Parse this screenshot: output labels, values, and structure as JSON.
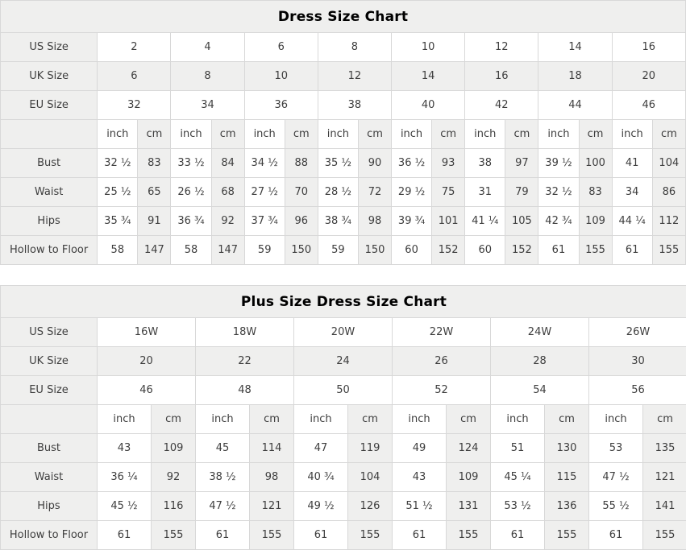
{
  "colors": {
    "shaded_bg": "#efefee",
    "border": "#d8d8d8",
    "body_text": "#3e3e3e",
    "title_text": "#000000",
    "page_bg": "#ffffff"
  },
  "tables": [
    {
      "title": "Dress Size Chart",
      "size_rows": [
        {
          "label": "US Size",
          "shaded": false,
          "values": [
            "2",
            "4",
            "6",
            "8",
            "10",
            "12",
            "14",
            "16"
          ]
        },
        {
          "label": "UK Size",
          "shaded": true,
          "values": [
            "6",
            "8",
            "10",
            "12",
            "14",
            "16",
            "18",
            "20"
          ]
        },
        {
          "label": "EU Size",
          "shaded": false,
          "values": [
            "32",
            "34",
            "36",
            "38",
            "40",
            "42",
            "44",
            "46"
          ]
        }
      ],
      "unit_row": {
        "label": "",
        "units": [
          "inch",
          "cm"
        ]
      },
      "measurement_rows": [
        {
          "label": "Bust",
          "values": [
            [
              "32 ½",
              "83"
            ],
            [
              "33 ½",
              "84"
            ],
            [
              "34 ½",
              "88"
            ],
            [
              "35 ½",
              "90"
            ],
            [
              "36 ½",
              "93"
            ],
            [
              "38",
              "97"
            ],
            [
              "39 ½",
              "100"
            ],
            [
              "41",
              "104"
            ]
          ]
        },
        {
          "label": "Waist",
          "values": [
            [
              "25 ½",
              "65"
            ],
            [
              "26 ½",
              "68"
            ],
            [
              "27 ½",
              "70"
            ],
            [
              "28 ½",
              "72"
            ],
            [
              "29 ½",
              "75"
            ],
            [
              "31",
              "79"
            ],
            [
              "32 ½",
              "83"
            ],
            [
              "34",
              "86"
            ]
          ]
        },
        {
          "label": "Hips",
          "values": [
            [
              "35 ¾",
              "91"
            ],
            [
              "36 ¾",
              "92"
            ],
            [
              "37 ¾",
              "96"
            ],
            [
              "38 ¾",
              "98"
            ],
            [
              "39 ¾",
              "101"
            ],
            [
              "41 ¼",
              "105"
            ],
            [
              "42 ¾",
              "109"
            ],
            [
              "44 ¼",
              "112"
            ]
          ]
        },
        {
          "label": "Hollow to Floor",
          "values": [
            [
              "58",
              "147"
            ],
            [
              "58",
              "147"
            ],
            [
              "59",
              "150"
            ],
            [
              "59",
              "150"
            ],
            [
              "60",
              "152"
            ],
            [
              "60",
              "152"
            ],
            [
              "61",
              "155"
            ],
            [
              "61",
              "155"
            ]
          ]
        }
      ]
    },
    {
      "title": "Plus Size Dress Size Chart",
      "size_rows": [
        {
          "label": "US Size",
          "shaded": false,
          "values": [
            "16W",
            "18W",
            "20W",
            "22W",
            "24W",
            "26W"
          ]
        },
        {
          "label": "UK Size",
          "shaded": true,
          "values": [
            "20",
            "22",
            "24",
            "26",
            "28",
            "30"
          ]
        },
        {
          "label": "EU Size",
          "shaded": false,
          "values": [
            "46",
            "48",
            "50",
            "52",
            "54",
            "56"
          ]
        }
      ],
      "unit_row": {
        "label": "",
        "units": [
          "inch",
          "cm"
        ]
      },
      "measurement_rows": [
        {
          "label": "Bust",
          "values": [
            [
              "43",
              "109"
            ],
            [
              "45",
              "114"
            ],
            [
              "47",
              "119"
            ],
            [
              "49",
              "124"
            ],
            [
              "51",
              "130"
            ],
            [
              "53",
              "135"
            ]
          ]
        },
        {
          "label": "Waist",
          "values": [
            [
              "36 ¼",
              "92"
            ],
            [
              "38 ½",
              "98"
            ],
            [
              "40 ¾",
              "104"
            ],
            [
              "43",
              "109"
            ],
            [
              "45 ¼",
              "115"
            ],
            [
              "47 ½",
              "121"
            ]
          ]
        },
        {
          "label": "Hips",
          "values": [
            [
              "45 ½",
              "116"
            ],
            [
              "47 ½",
              "121"
            ],
            [
              "49 ½",
              "126"
            ],
            [
              "51 ½",
              "131"
            ],
            [
              "53 ½",
              "136"
            ],
            [
              "55 ½",
              "141"
            ]
          ]
        },
        {
          "label": "Hollow to Floor",
          "values": [
            [
              "61",
              "155"
            ],
            [
              "61",
              "155"
            ],
            [
              "61",
              "155"
            ],
            [
              "61",
              "155"
            ],
            [
              "61",
              "155"
            ],
            [
              "61",
              "155"
            ]
          ]
        }
      ]
    }
  ]
}
